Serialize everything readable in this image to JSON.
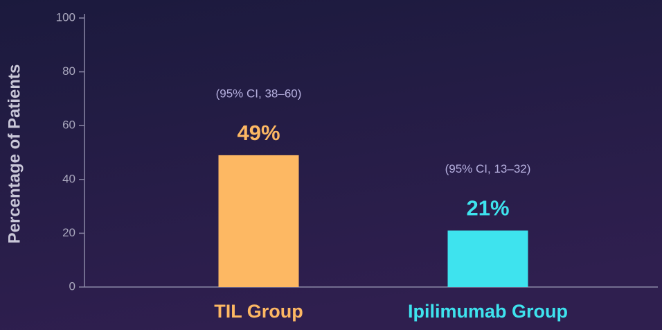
{
  "chart_data": {
    "type": "bar",
    "y_label": "Percentage of Patients",
    "categories": [
      "TIL Group",
      "Ipilimumab Group"
    ],
    "values": [
      49,
      21
    ],
    "value_labels": [
      "49%",
      "21%"
    ],
    "annotations": [
      "(95% CI, 38–60)",
      "(95% CI, 13–32)"
    ],
    "colors": [
      "#fdb863",
      "#3ee3ee"
    ],
    "ylim": [
      0,
      100
    ],
    "yticks": [
      0,
      20,
      40,
      60,
      80,
      100
    ]
  }
}
